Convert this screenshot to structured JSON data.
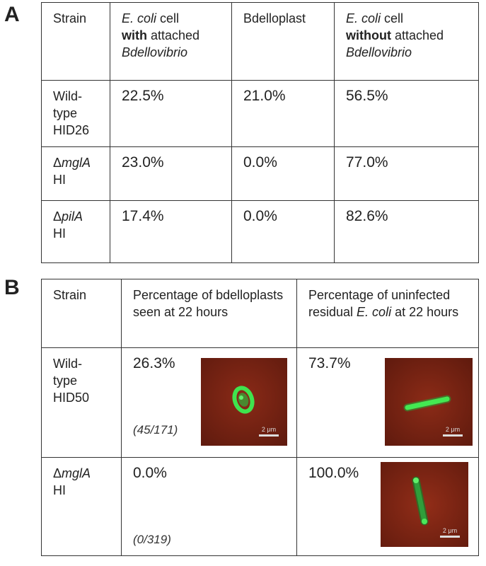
{
  "panel_a": {
    "letter": "A",
    "headers": {
      "strain": "Strain",
      "with_pre": "E. coli",
      "with_mid1": " cell",
      "with_bold": "with",
      "with_mid2": " attached",
      "with_post": "Bdellovibrio",
      "bdelloplast": "Bdelloplast",
      "without_pre": "E. coli",
      "without_mid1": " cell",
      "without_bold": "without",
      "without_mid2": " attached",
      "without_post": "Bdellovibrio"
    },
    "rows": [
      {
        "strain_l1": "Wild-",
        "strain_l2": "type",
        "strain_l3": "HID26",
        "with": "22.5%",
        "bdelloplast": "21.0%",
        "without": "56.5%"
      },
      {
        "strain_sym": "Δ",
        "strain_gene": "mglA",
        "strain_l2": "HI",
        "with": "23.0%",
        "bdelloplast": "0.0%",
        "without": "77.0%"
      },
      {
        "strain_sym": "Δ",
        "strain_gene": "pilA",
        "strain_l2": "HI",
        "with": "17.4%",
        "bdelloplast": "0.0%",
        "without": "82.6%"
      }
    ]
  },
  "panel_b": {
    "letter": "B",
    "headers": {
      "strain": "Strain",
      "pct_bdelloplasts": "Percentage of bdelloplasts seen at 22 hours",
      "pct_uninfected_pre": "Percentage of uninfected residual ",
      "pct_uninfected_it": "E. coli",
      "pct_uninfected_post": " at 22 hours"
    },
    "rows": [
      {
        "strain_l1": "Wild-",
        "strain_l2": "type",
        "strain_l3": "HID50",
        "bdelloplast_pct": "26.3%",
        "bdelloplast_frac": "(45/171)",
        "uninfected_pct": "73.7%"
      },
      {
        "strain_sym": "Δ",
        "strain_gene": "mglA",
        "strain_l2": "HI",
        "bdelloplast_pct": "0.0%",
        "bdelloplast_frac": "(0/319)",
        "uninfected_pct": "100.0%"
      }
    ],
    "scale_label": "2 μm",
    "colors": {
      "background": "#7a2314",
      "fluor": "#39e04a",
      "scalebar": "#dddddd"
    }
  }
}
